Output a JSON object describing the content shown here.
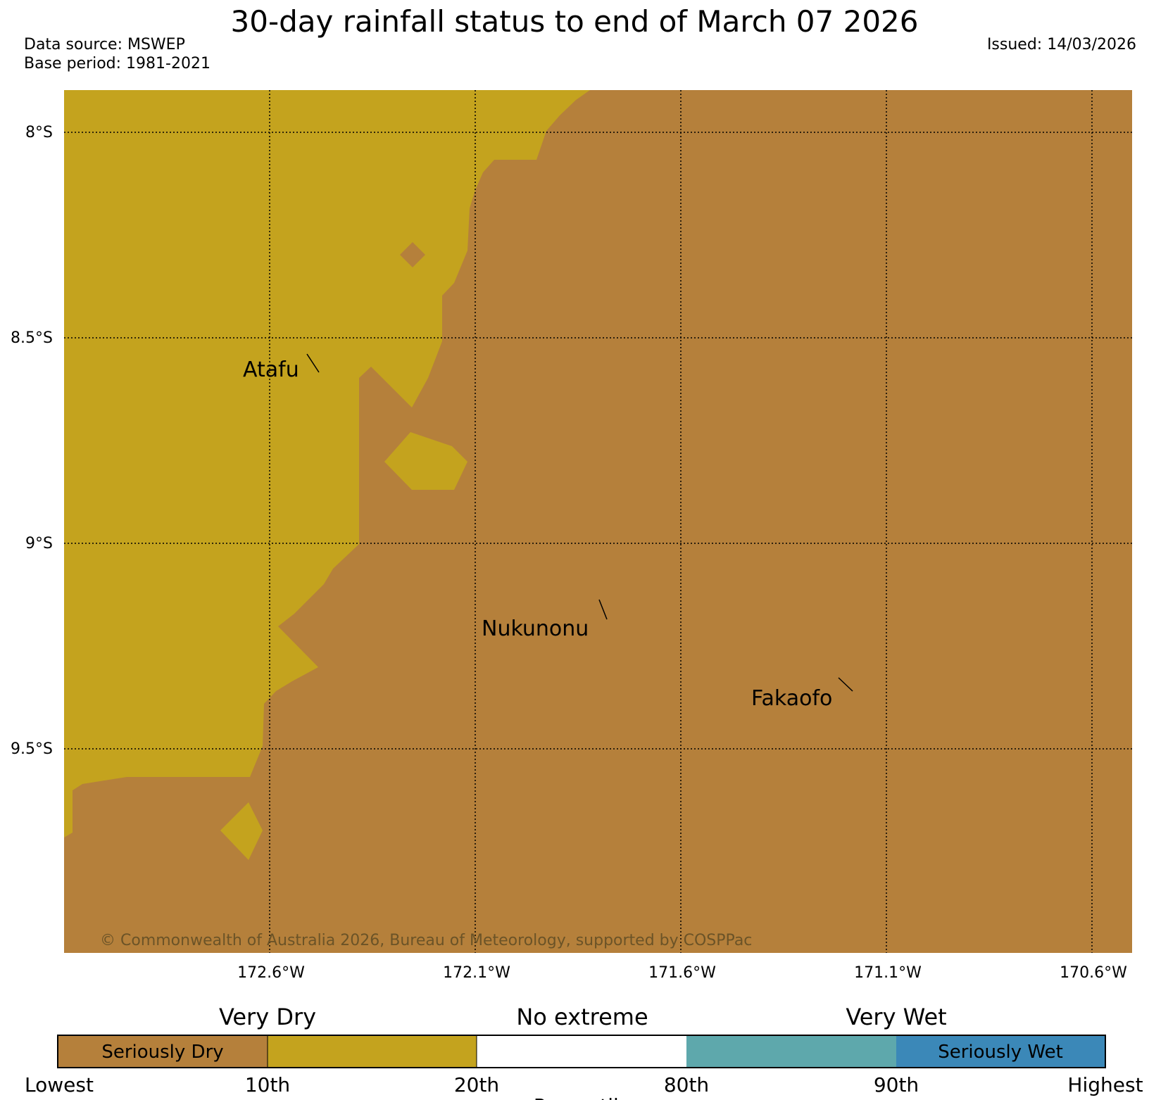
{
  "title": "30-day rainfall status to end of March 07 2026",
  "data_source": "Data source: MSWEP",
  "base_period": "Base period: 1981-2021",
  "issued": "Issued: 14/03/2026",
  "copyright": "© Commonwealth of Australia 2026, Bureau of Meteorology, supported by COSPPac",
  "map": {
    "lat_labels": [
      "8°S",
      "8.5°S",
      "9°S",
      "9.5°S"
    ],
    "lon_labels": [
      "172.6°W",
      "172.1°W",
      "171.6°W",
      "171.1°W",
      "170.6°W"
    ],
    "places": [
      {
        "name": "Atafu"
      },
      {
        "name": "Nukunonu"
      },
      {
        "name": "Fakaofo"
      }
    ],
    "colors": {
      "seriously_dry": "#b5803b",
      "very_dry": "#c4a31e",
      "no_extreme": "#ffffff",
      "very_wet": "#5ea8ac",
      "seriously_wet": "#3b88b8"
    }
  },
  "legend": {
    "categories": [
      "Very Dry",
      "No extreme",
      "Very Wet"
    ],
    "band_labels": [
      "Seriously Dry",
      "Seriously Wet"
    ],
    "ticks": [
      "Lowest",
      "10th",
      "20th",
      "80th",
      "90th",
      "Highest"
    ],
    "axis_label": "Percentile"
  }
}
